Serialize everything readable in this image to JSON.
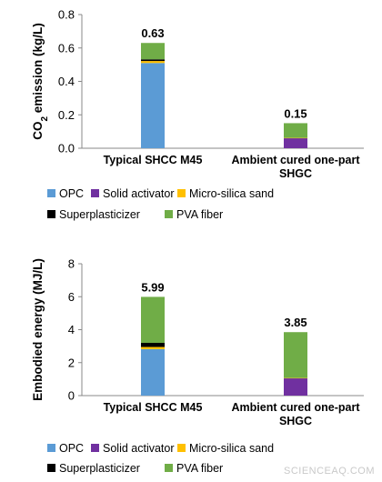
{
  "watermark": "SCIENCEAQ.COM",
  "chart_data": [
    {
      "type": "bar",
      "stacked": true,
      "ylabel": "CO2 emission (kg/L)",
      "ylabel_parts": [
        "CO",
        "2",
        " emission (kg/L)"
      ],
      "ylim": [
        0,
        0.8
      ],
      "yticks": [
        "0.0",
        "0.2",
        "0.4",
        "0.6",
        "0.8"
      ],
      "tick_values": [
        0,
        0.2,
        0.4,
        0.6,
        0.8
      ],
      "grid": false,
      "legend_position": "bottom",
      "categories": [
        {
          "lines": [
            "Typical SHCC M45"
          ]
        },
        {
          "lines": [
            "Ambient cured one-part",
            "SHGC"
          ]
        }
      ],
      "totals": [
        "0.63",
        "0.15"
      ],
      "series": [
        {
          "name": "OPC",
          "color": "#5b9bd5",
          "values": [
            0.51,
            0
          ]
        },
        {
          "name": "Solid activator",
          "color": "#7030a0",
          "values": [
            0,
            0.06
          ]
        },
        {
          "name": "Micro-silica sand",
          "color": "#ffc000",
          "values": [
            0.012,
            0.002
          ]
        },
        {
          "name": "Superplasticizer",
          "color": "#000000",
          "values": [
            0.01,
            0
          ]
        },
        {
          "name": "PVA fiber",
          "color": "#70ad47",
          "values": [
            0.098,
            0.088
          ]
        }
      ]
    },
    {
      "type": "bar",
      "stacked": true,
      "ylabel": "Embodied energy (MJ/L)",
      "ylim": [
        0,
        8
      ],
      "yticks": [
        "0",
        "2",
        "4",
        "6",
        "8"
      ],
      "tick_values": [
        0,
        2,
        4,
        6,
        8
      ],
      "grid": false,
      "legend_position": "bottom",
      "categories": [
        {
          "lines": [
            "Typical SHCC M45"
          ]
        },
        {
          "lines": [
            "Ambient cured one-part",
            "SHGC"
          ]
        }
      ],
      "totals": [
        "5.99",
        "3.85"
      ],
      "series": [
        {
          "name": "OPC",
          "color": "#5b9bd5",
          "values": [
            2.82,
            0
          ]
        },
        {
          "name": "Solid activator",
          "color": "#7030a0",
          "values": [
            0,
            1.05
          ]
        },
        {
          "name": "Micro-silica sand",
          "color": "#ffc000",
          "values": [
            0.13,
            0.02
          ]
        },
        {
          "name": "Superplasticizer",
          "color": "#000000",
          "values": [
            0.25,
            0
          ]
        },
        {
          "name": "PVA fiber",
          "color": "#70ad47",
          "values": [
            2.79,
            2.78
          ]
        }
      ]
    }
  ]
}
